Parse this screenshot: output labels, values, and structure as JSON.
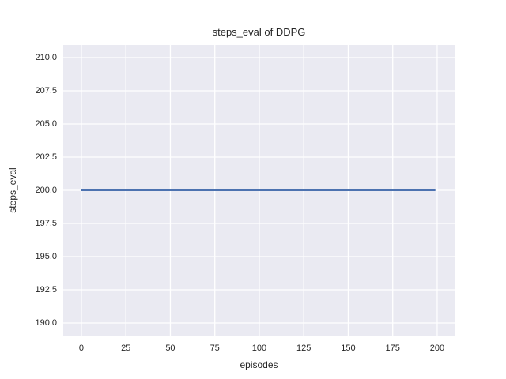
{
  "chart_data": {
    "type": "line",
    "title": "steps_eval of DDPG",
    "xlabel": "episodes",
    "ylabel": "steps_eval",
    "x_ticks": [
      0,
      25,
      50,
      75,
      100,
      125,
      150,
      175,
      200
    ],
    "x_tick_labels": [
      "0",
      "25",
      "50",
      "75",
      "100",
      "125",
      "150",
      "175",
      "200"
    ],
    "y_ticks": [
      190.0,
      192.5,
      195.0,
      197.5,
      200.0,
      202.5,
      205.0,
      207.5,
      210.0
    ],
    "y_tick_labels": [
      "190.0",
      "192.5",
      "195.0",
      "197.5",
      "200.0",
      "202.5",
      "205.0",
      "207.5",
      "210.0"
    ],
    "xlim": [
      -10.2,
      209.8
    ],
    "ylim": [
      189.05,
      210.95
    ],
    "grid": true,
    "legend": "none",
    "series": [
      {
        "name": "steps_eval",
        "x": [
          0,
          199
        ],
        "y": [
          200,
          200
        ],
        "color": "#4c72b0",
        "note": "constant value 200 for every episode from 0 to 199"
      }
    ],
    "colors": {
      "plot_background": "#eaeaf2",
      "figure_background": "#ffffff",
      "gridline": "#ffffff",
      "line": "#4c72b0",
      "text": "#262626"
    }
  }
}
